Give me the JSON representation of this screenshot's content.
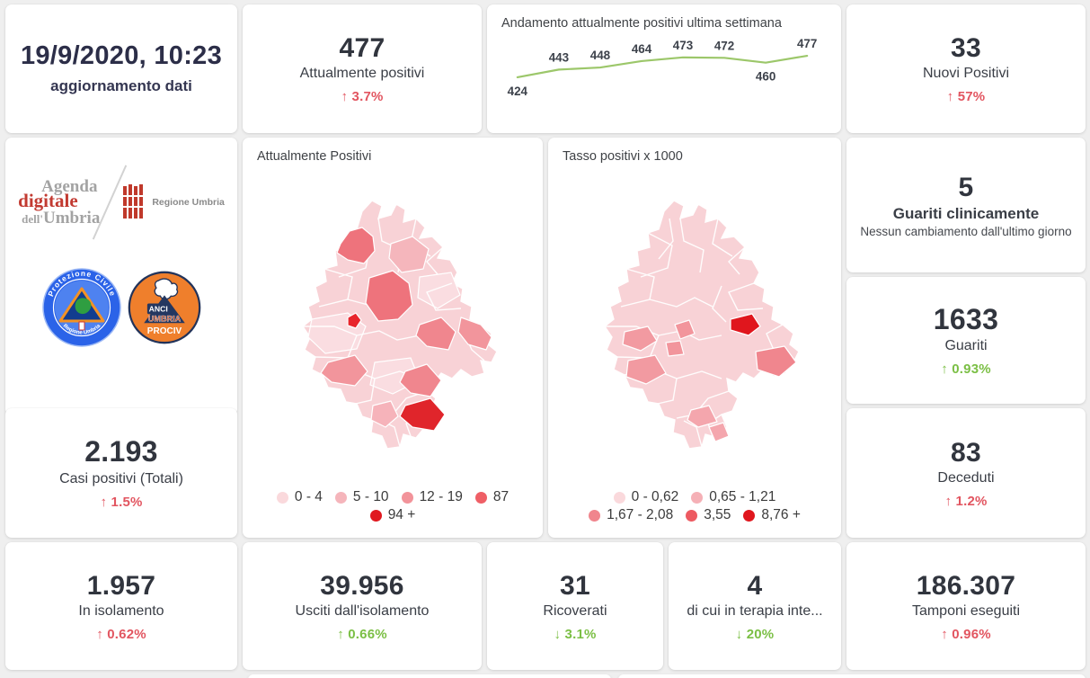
{
  "colors": {
    "page_bg": "#efefef",
    "card_bg": "#ffffff",
    "number": "#31353e",
    "accent_red": "#e25560",
    "accent_green": "#7bbf45",
    "trend_line": "#9cc76a",
    "map_scale_attualmente": [
      "#fad9dc",
      "#f5b5bb",
      "#f2939a",
      "#ef5f66",
      "#e0181f"
    ],
    "map_scale_tasso": [
      "#fad9dc",
      "#f5b0b6",
      "#f0858d",
      "#ed5a61",
      "#e0161d"
    ]
  },
  "kpis": {
    "update": {
      "value": "19/9/2020, 10:23",
      "label": "aggiornamento dati"
    },
    "attualmente": {
      "value": "477",
      "label": "Attualmente positivi",
      "delta": "↑ 3.7%",
      "tone": "red"
    },
    "nuovi": {
      "value": "33",
      "label": "Nuovi Positivi",
      "delta": "↑ 57%",
      "tone": "red"
    },
    "guariti_clinicamente": {
      "value": "5",
      "label": "Guariti clinicamente",
      "note": "Nessun cambiamento dall'ultimo giorno"
    },
    "guariti": {
      "value": "1633",
      "label": "Guariti",
      "delta": "↑ 0.93%",
      "tone": "green"
    },
    "casi_totali": {
      "value": "2.193",
      "label": "Casi positivi (Totali)",
      "delta": "↑ 1.5%",
      "tone": "red"
    },
    "deceduti": {
      "value": "83",
      "label": "Deceduti",
      "delta": "↑ 1.2%",
      "tone": "red"
    },
    "in_isolamento": {
      "value": "1.957",
      "label": "In isolamento",
      "delta": "↑ 0.62%",
      "tone": "red"
    },
    "usciti_isolamento": {
      "value": "39.956",
      "label": "Usciti dall'isolamento",
      "delta": "↑ 0.66%",
      "tone": "green"
    },
    "ricoverati": {
      "value": "31",
      "label": "Ricoverati",
      "delta": "↓ 3.1%",
      "tone": "green"
    },
    "terapia_intensiva": {
      "value": "4",
      "label": "di cui in terapia inte...",
      "delta": "↓ 20%",
      "tone": "green"
    },
    "tamponi": {
      "value": "186.307",
      "label": "Tamponi eseguiti",
      "delta": "↑ 0.96%",
      "tone": "red"
    }
  },
  "trend": {
    "title": "Andamento attualmente positivi ultima settimana"
  },
  "maps": {
    "map1": {
      "title": "Attualmente Positivi",
      "legend_rows": [
        [
          {
            "label": "0 - 4",
            "color": "#fad9dc"
          },
          {
            "label": "5 - 10",
            "color": "#f5b5bb"
          },
          {
            "label": "12 - 19",
            "color": "#f2939a"
          },
          {
            "label": "87",
            "color": "#ef5f66"
          }
        ],
        [
          {
            "label": "94 +",
            "color": "#e0181f"
          }
        ]
      ]
    },
    "map2": {
      "title": "Tasso positivi x 1000",
      "legend_rows": [
        [
          {
            "label": "0 - 0,62",
            "color": "#fad9dc"
          },
          {
            "label": "0,65 - 1,21",
            "color": "#f5b0b6"
          }
        ],
        [
          {
            "label": "1,67 - 2,08",
            "color": "#f0858d"
          },
          {
            "label": "3,55",
            "color": "#ed5a61"
          },
          {
            "label": "8,76 +",
            "color": "#e0161d"
          }
        ]
      ]
    }
  },
  "logos": {
    "agenda_line1": "Agenda",
    "agenda_line2": "digitale",
    "agenda_line3_small": "dell'",
    "agenda_line3": "Umbria",
    "regione_umbria": "Regione Umbria",
    "prociv_top": "Protezione Civile",
    "prociv_bottom": "Regione Umbria",
    "anci": "ANCI",
    "anci_umbria": "UMBRIA",
    "anci_prociv": "PROCIV"
  },
  "chart_data": [
    {
      "type": "line",
      "title": "Andamento attualmente positivi ultima settimana",
      "values": [
        424,
        443,
        448,
        464,
        473,
        472,
        460,
        477
      ],
      "line_color": "#9cc76a",
      "data_labels": true,
      "label_offsets": [
        "below",
        "above",
        "above",
        "above",
        "above",
        "above",
        "below",
        "above"
      ],
      "axes": "hidden",
      "grid": false
    },
    {
      "type": "heatmap",
      "subtype": "choropleth",
      "title": "Attualmente Positivi",
      "region": "Umbria",
      "legend_bins": [
        "0 - 4",
        "5 - 10",
        "12 - 19",
        "87",
        "94 +"
      ],
      "bin_colors": [
        "#fad9dc",
        "#f5b5bb",
        "#f2939a",
        "#ef5f66",
        "#e0181f"
      ],
      "legend_position": "bottom"
    },
    {
      "type": "heatmap",
      "subtype": "choropleth",
      "title": "Tasso positivi x 1000",
      "region": "Umbria",
      "legend_bins": [
        "0 - 0,62",
        "0,65 - 1,21",
        "1,67 - 2,08",
        "3,55",
        "8,76 +"
      ],
      "bin_colors": [
        "#fad9dc",
        "#f5b0b6",
        "#f0858d",
        "#ed5a61",
        "#e0161d"
      ],
      "legend_position": "bottom"
    }
  ]
}
